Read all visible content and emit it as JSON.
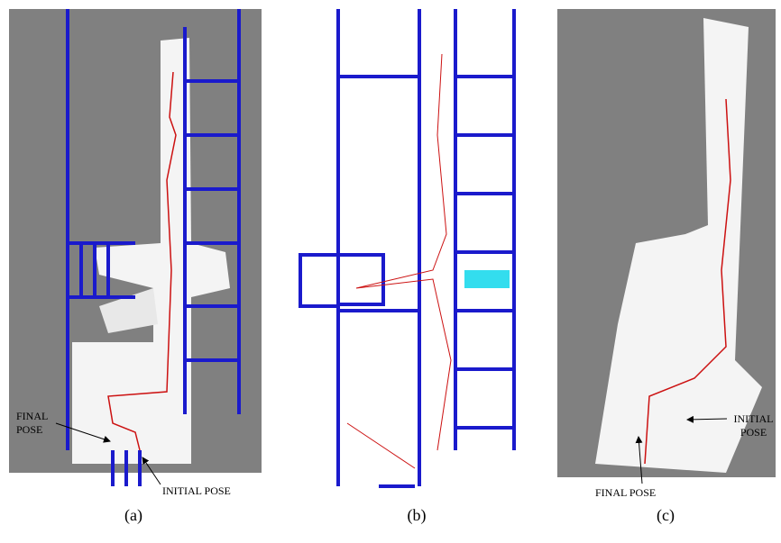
{
  "panels": [
    {
      "caption": "(a)",
      "labels": [
        "FINAL POSE",
        "INITIAL POSE"
      ]
    },
    {
      "caption": "(b)",
      "labels": []
    },
    {
      "caption": "(c)",
      "labels": [
        "INITIAL POSE",
        "FINAL POSE"
      ]
    }
  ]
}
